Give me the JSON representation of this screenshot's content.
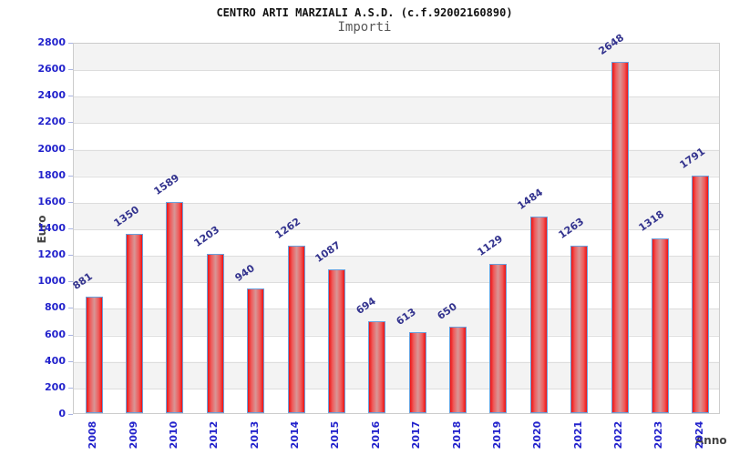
{
  "title": "CENTRO ARTI MARZIALI A.S.D. (c.f.92002160890)",
  "subtitle": "Importi",
  "chart_data": {
    "type": "bar",
    "categories": [
      "2008",
      "2009",
      "2010",
      "2012",
      "2013",
      "2014",
      "2015",
      "2016",
      "2017",
      "2018",
      "2019",
      "2020",
      "2021",
      "2022",
      "2023",
      "2024"
    ],
    "values": [
      881,
      1350,
      1589,
      1203,
      940,
      1262,
      1087,
      694,
      613,
      650,
      1129,
      1484,
      1263,
      2648,
      1318,
      1791
    ],
    "title": "CENTRO ARTI MARZIALI A.S.D. (c.f.92002160890)",
    "subtitle": "Importi",
    "xlabel": "Anno",
    "ylabel": "Euro",
    "ylim": [
      0,
      2800
    ],
    "ytick_step": 200,
    "grid": true,
    "legend": "none",
    "colors": {
      "bar_edge": "#ee1313",
      "bar_mid": "#ef5a5a",
      "bar_center": "#d89696",
      "bar_border": "#6aa0dc",
      "tick_label": "#2323cc",
      "value_label": "#33338e",
      "axis_title": "#444444",
      "band_gray": "#f3f3f3",
      "band_white": "#ffffff",
      "grid_line": "#dddddd",
      "plot_border": "#cccccc",
      "tick_mark": "#a9b4e2",
      "title_color": "#111111",
      "subtitle_color": "#585858"
    }
  }
}
